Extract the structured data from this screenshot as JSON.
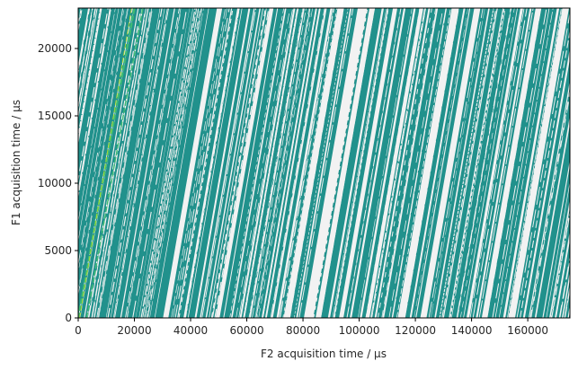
{
  "chart_data": {
    "type": "heatmap",
    "title": "",
    "xlabel": "F2 acquisition time / µs",
    "ylabel": "F1 acquisition time / µs",
    "xlim": [
      0,
      175000
    ],
    "ylim": [
      0,
      23000
    ],
    "xticks": [
      0,
      20000,
      40000,
      60000,
      80000,
      100000,
      120000,
      140000,
      160000
    ],
    "yticks": [
      0,
      5000,
      10000,
      15000,
      20000
    ],
    "grid": false,
    "colormap": "viridis",
    "colors": {
      "background": "#f2f2f2",
      "fill": "#21918c",
      "highlight": "#3fbc73",
      "bright": "#bddf26",
      "axis": "#000000"
    },
    "description_pattern": "diagonal striped intensity bands sloping upward to the right, brightest ridge near x≈0–25000"
  }
}
